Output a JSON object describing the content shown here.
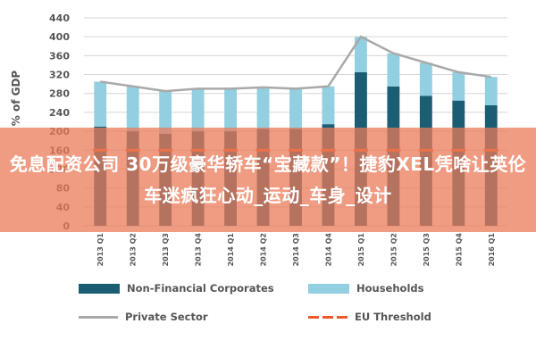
{
  "chart_data": {
    "type": "bar",
    "categories": [
      "2013 Q1",
      "2013 Q2",
      "2013 Q3",
      "2013 Q4",
      "2014 Q1",
      "2014 Q2",
      "2014 Q3",
      "2014 Q4",
      "2015 Q1",
      "2015 Q2",
      "2015 Q3",
      "2015 Q4",
      "2016 Q1"
    ],
    "series": [
      {
        "name": "Non-Financial Corporates",
        "kind": "bar",
        "color": "#1b5e73",
        "values": [
          210,
          200,
          195,
          200,
          200,
          205,
          205,
          215,
          325,
          295,
          275,
          265,
          255
        ]
      },
      {
        "name": "Households",
        "kind": "bar",
        "color": "#92cfe0",
        "values": [
          95,
          95,
          90,
          90,
          90,
          88,
          85,
          80,
          75,
          70,
          70,
          60,
          60
        ]
      },
      {
        "name": "Private Sector",
        "kind": "line",
        "color": "#a9a9a9",
        "values": [
          305,
          295,
          285,
          290,
          290,
          293,
          290,
          295,
          400,
          365,
          345,
          325,
          315
        ]
      },
      {
        "name": "EU Threshold",
        "kind": "dashed-line",
        "color": "#ee5a26",
        "values": [
          160,
          160,
          160,
          160,
          160,
          160,
          160,
          160,
          160,
          160,
          160,
          160,
          160
        ]
      }
    ],
    "ylabel": "% of GDP",
    "ylim": [
      0,
      440
    ],
    "yticks": [
      0,
      40,
      80,
      120,
      160,
      200,
      240,
      280,
      320,
      360,
      400,
      440
    ],
    "legend": "bottom"
  },
  "overlay": {
    "text": "免息配资公司 30万级豪华轿车“宝藏款”！捷豹XEL凭啥让英伦车迷疯狂心动_运动_车身_设计"
  }
}
